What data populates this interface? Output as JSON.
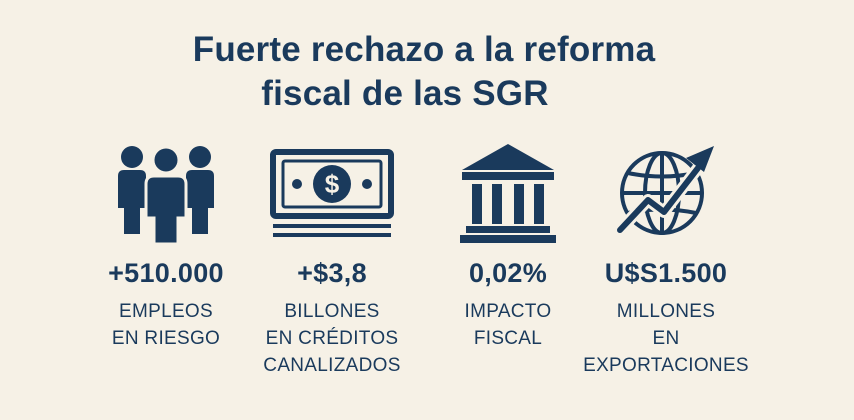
{
  "title": {
    "line1": "Fuerte rechazo a la reforma",
    "line2": "fiscal de las SGR"
  },
  "stats": [
    {
      "icon": "people-group-icon",
      "value": "+510.000",
      "label": [
        "EMPLEOS",
        "EN RIESGO"
      ]
    },
    {
      "icon": "banknote-dollar-icon",
      "value": "+$3,8",
      "label": [
        "BILLONES",
        "EN CRÉDITOS",
        "CANALIZADOS"
      ]
    },
    {
      "icon": "bank-building-icon",
      "value": "0,02%",
      "label": [
        "IMPACTO",
        "FISCAL"
      ]
    },
    {
      "icon": "globe-growth-arrow-icon",
      "value": "U$S1.500",
      "label": [
        "MILLONES",
        "EN",
        "EXPORTACIONES"
      ]
    }
  ],
  "colors": {
    "background": "#f6f1e6",
    "primary": "#1a3a5c"
  }
}
